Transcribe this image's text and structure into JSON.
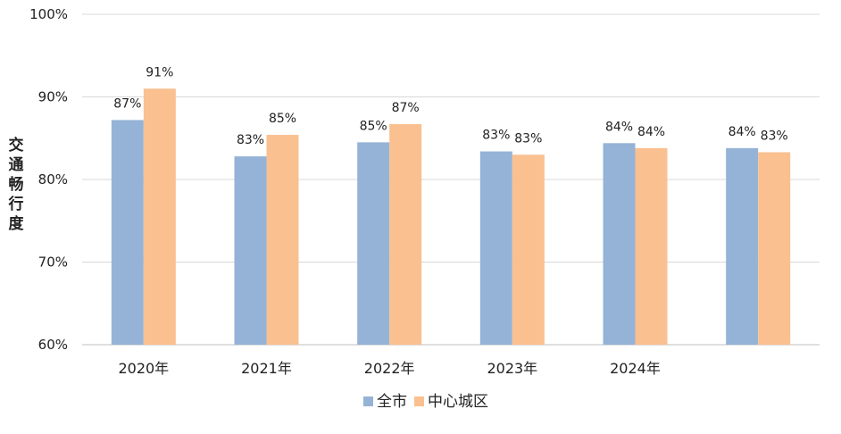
{
  "chart_data": {
    "type": "bar",
    "ylabel": "交通畅行度",
    "ylim": [
      0.6,
      1.0
    ],
    "y_ticks": [
      "60%",
      "70%",
      "80%",
      "90%",
      "100%"
    ],
    "grid": true,
    "legend_position": "bottom",
    "categories": [
      "2020年",
      "2021年",
      "2022年",
      "2023年",
      "2024年",
      ""
    ],
    "series": [
      {
        "name": "全市",
        "color": "#95B3D7",
        "values": [
          0.872,
          0.828,
          0.845,
          0.834,
          0.844,
          0.838
        ],
        "labels": [
          "87%",
          "83%",
          "85%",
          "83%",
          "84%",
          "84%"
        ]
      },
      {
        "name": "中心城区",
        "color": "#FAC090",
        "values": [
          0.91,
          0.854,
          0.867,
          0.83,
          0.838,
          0.833
        ],
        "labels": [
          "91%",
          "85%",
          "87%",
          "83%",
          "84%",
          "83%"
        ]
      }
    ]
  }
}
